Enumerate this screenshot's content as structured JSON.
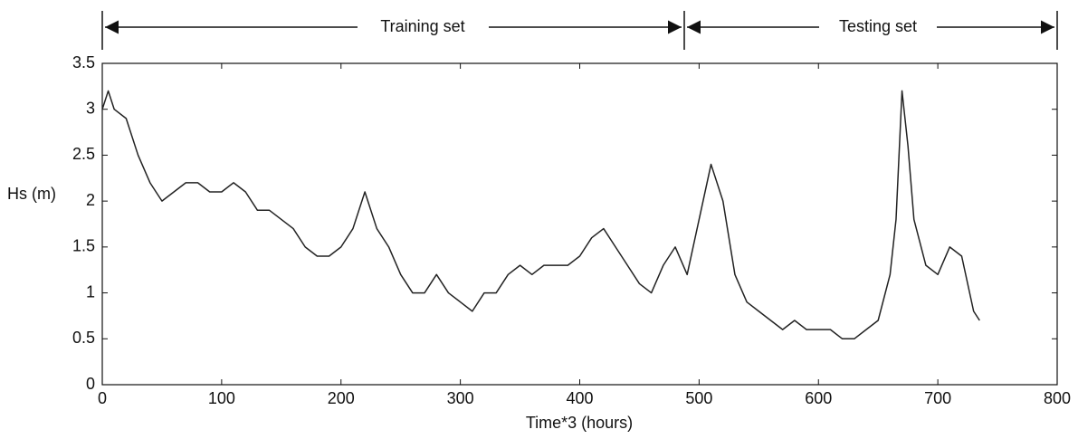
{
  "chart_data": {
    "type": "line",
    "annotations": [
      "Training set",
      "Testing set"
    ],
    "xlabel": "Time*3 (hours)",
    "ylabel": "Hs (m)",
    "x": [
      0,
      5,
      10,
      20,
      30,
      40,
      50,
      60,
      70,
      80,
      90,
      100,
      110,
      120,
      130,
      140,
      150,
      160,
      170,
      180,
      190,
      200,
      210,
      220,
      230,
      240,
      250,
      260,
      270,
      280,
      290,
      300,
      310,
      320,
      330,
      340,
      350,
      360,
      370,
      380,
      390,
      400,
      410,
      420,
      430,
      440,
      450,
      460,
      470,
      480,
      490,
      500,
      510,
      520,
      530,
      540,
      550,
      560,
      570,
      580,
      590,
      600,
      610,
      620,
      630,
      640,
      650,
      660,
      665,
      670,
      675,
      680,
      690,
      700,
      710,
      720,
      730,
      735
    ],
    "values": [
      3.0,
      3.2,
      3.0,
      2.9,
      2.5,
      2.2,
      2.0,
      2.1,
      2.2,
      2.2,
      2.1,
      2.1,
      2.2,
      2.1,
      1.9,
      1.9,
      1.8,
      1.7,
      1.5,
      1.4,
      1.4,
      1.5,
      1.7,
      2.1,
      1.7,
      1.5,
      1.2,
      1.0,
      1.0,
      1.2,
      1.0,
      0.9,
      0.8,
      1.0,
      1.0,
      1.2,
      1.3,
      1.2,
      1.3,
      1.3,
      1.3,
      1.4,
      1.6,
      1.7,
      1.5,
      1.3,
      1.1,
      1.0,
      1.3,
      1.5,
      1.2,
      1.8,
      2.4,
      2.0,
      1.2,
      0.9,
      0.8,
      0.7,
      0.6,
      0.7,
      0.6,
      0.6,
      0.6,
      0.5,
      0.5,
      0.6,
      0.7,
      1.2,
      1.8,
      3.2,
      2.6,
      1.8,
      1.3,
      1.2,
      1.5,
      1.4,
      0.8,
      0.7
    ],
    "color": "#222222",
    "xlim": [
      0,
      800
    ],
    "xticks": [
      0,
      100,
      200,
      300,
      400,
      500,
      600,
      700,
      800
    ],
    "ylim": [
      0,
      3.5
    ],
    "yticks": [
      0,
      0.5,
      1,
      1.5,
      2,
      2.5,
      3,
      3.5
    ],
    "grid": false
  }
}
